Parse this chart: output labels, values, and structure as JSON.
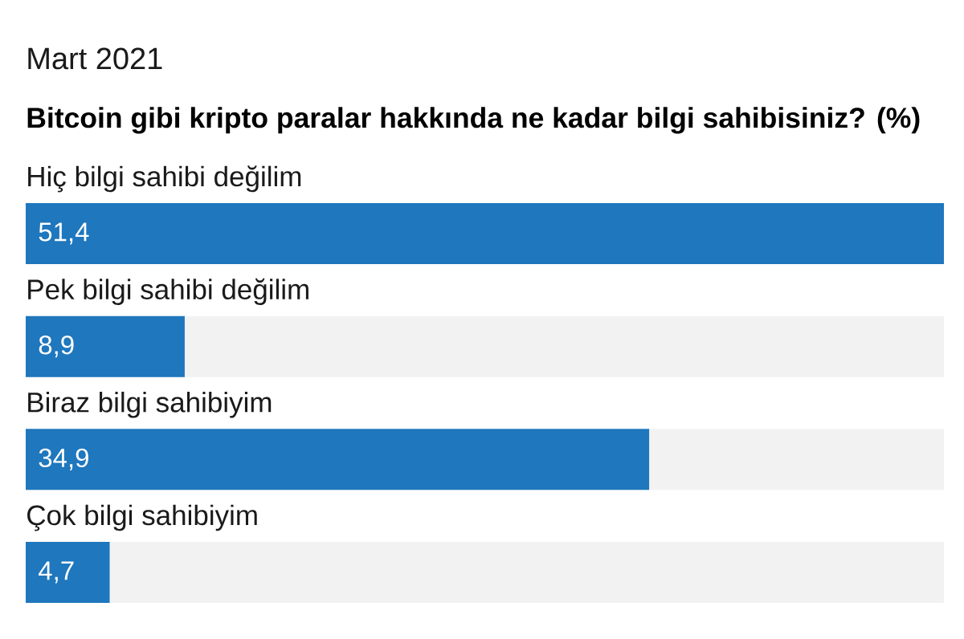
{
  "chart_data": {
    "type": "bar",
    "orientation": "horizontal",
    "subtitle": "Mart 2021",
    "title": "Bitcoin gibi kripto paralar hakkında ne kadar bilgi sahibisiniz? (%)",
    "categories": [
      "Hiç bilgi sahibi değilim",
      "Pek bilgi sahibi değilim",
      "Biraz bilgi sahibiyim",
      "Çok bilgi sahibiyim"
    ],
    "values": [
      51.4,
      8.9,
      34.9,
      4.7
    ],
    "value_labels": [
      "51,4",
      "8,9",
      "34,9",
      "4,7"
    ],
    "color": "#1f77bd"
  }
}
